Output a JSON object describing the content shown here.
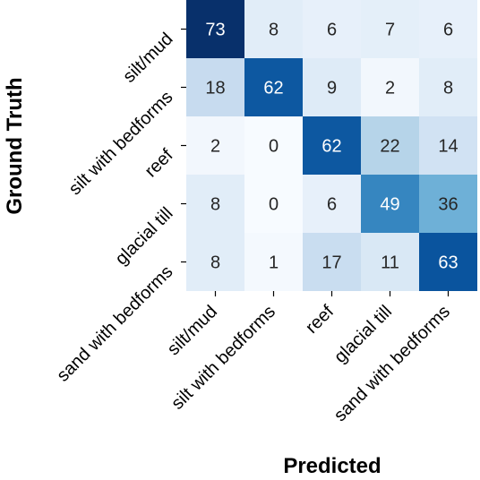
{
  "chart_data": {
    "type": "heatmap",
    "title": "",
    "xlabel": "Predicted",
    "ylabel": "Ground Truth",
    "x_categories": [
      "silt/mud",
      "silt with bedforms",
      "reef",
      "glacial till",
      "sand with bedforms"
    ],
    "y_categories": [
      "silt/mud",
      "silt with bedforms",
      "reef",
      "glacial till",
      "sand with bedforms"
    ],
    "values": [
      [
        73,
        8,
        6,
        7,
        6
      ],
      [
        18,
        62,
        9,
        2,
        8
      ],
      [
        2,
        0,
        62,
        22,
        14
      ],
      [
        8,
        0,
        6,
        49,
        36
      ],
      [
        8,
        1,
        17,
        11,
        63
      ]
    ],
    "color_range": [
      0,
      73
    ],
    "colormap": "Blues",
    "colors": {
      "low": "#f7fbff",
      "high": "#08306b"
    },
    "annotated": true,
    "colorbar": false
  }
}
